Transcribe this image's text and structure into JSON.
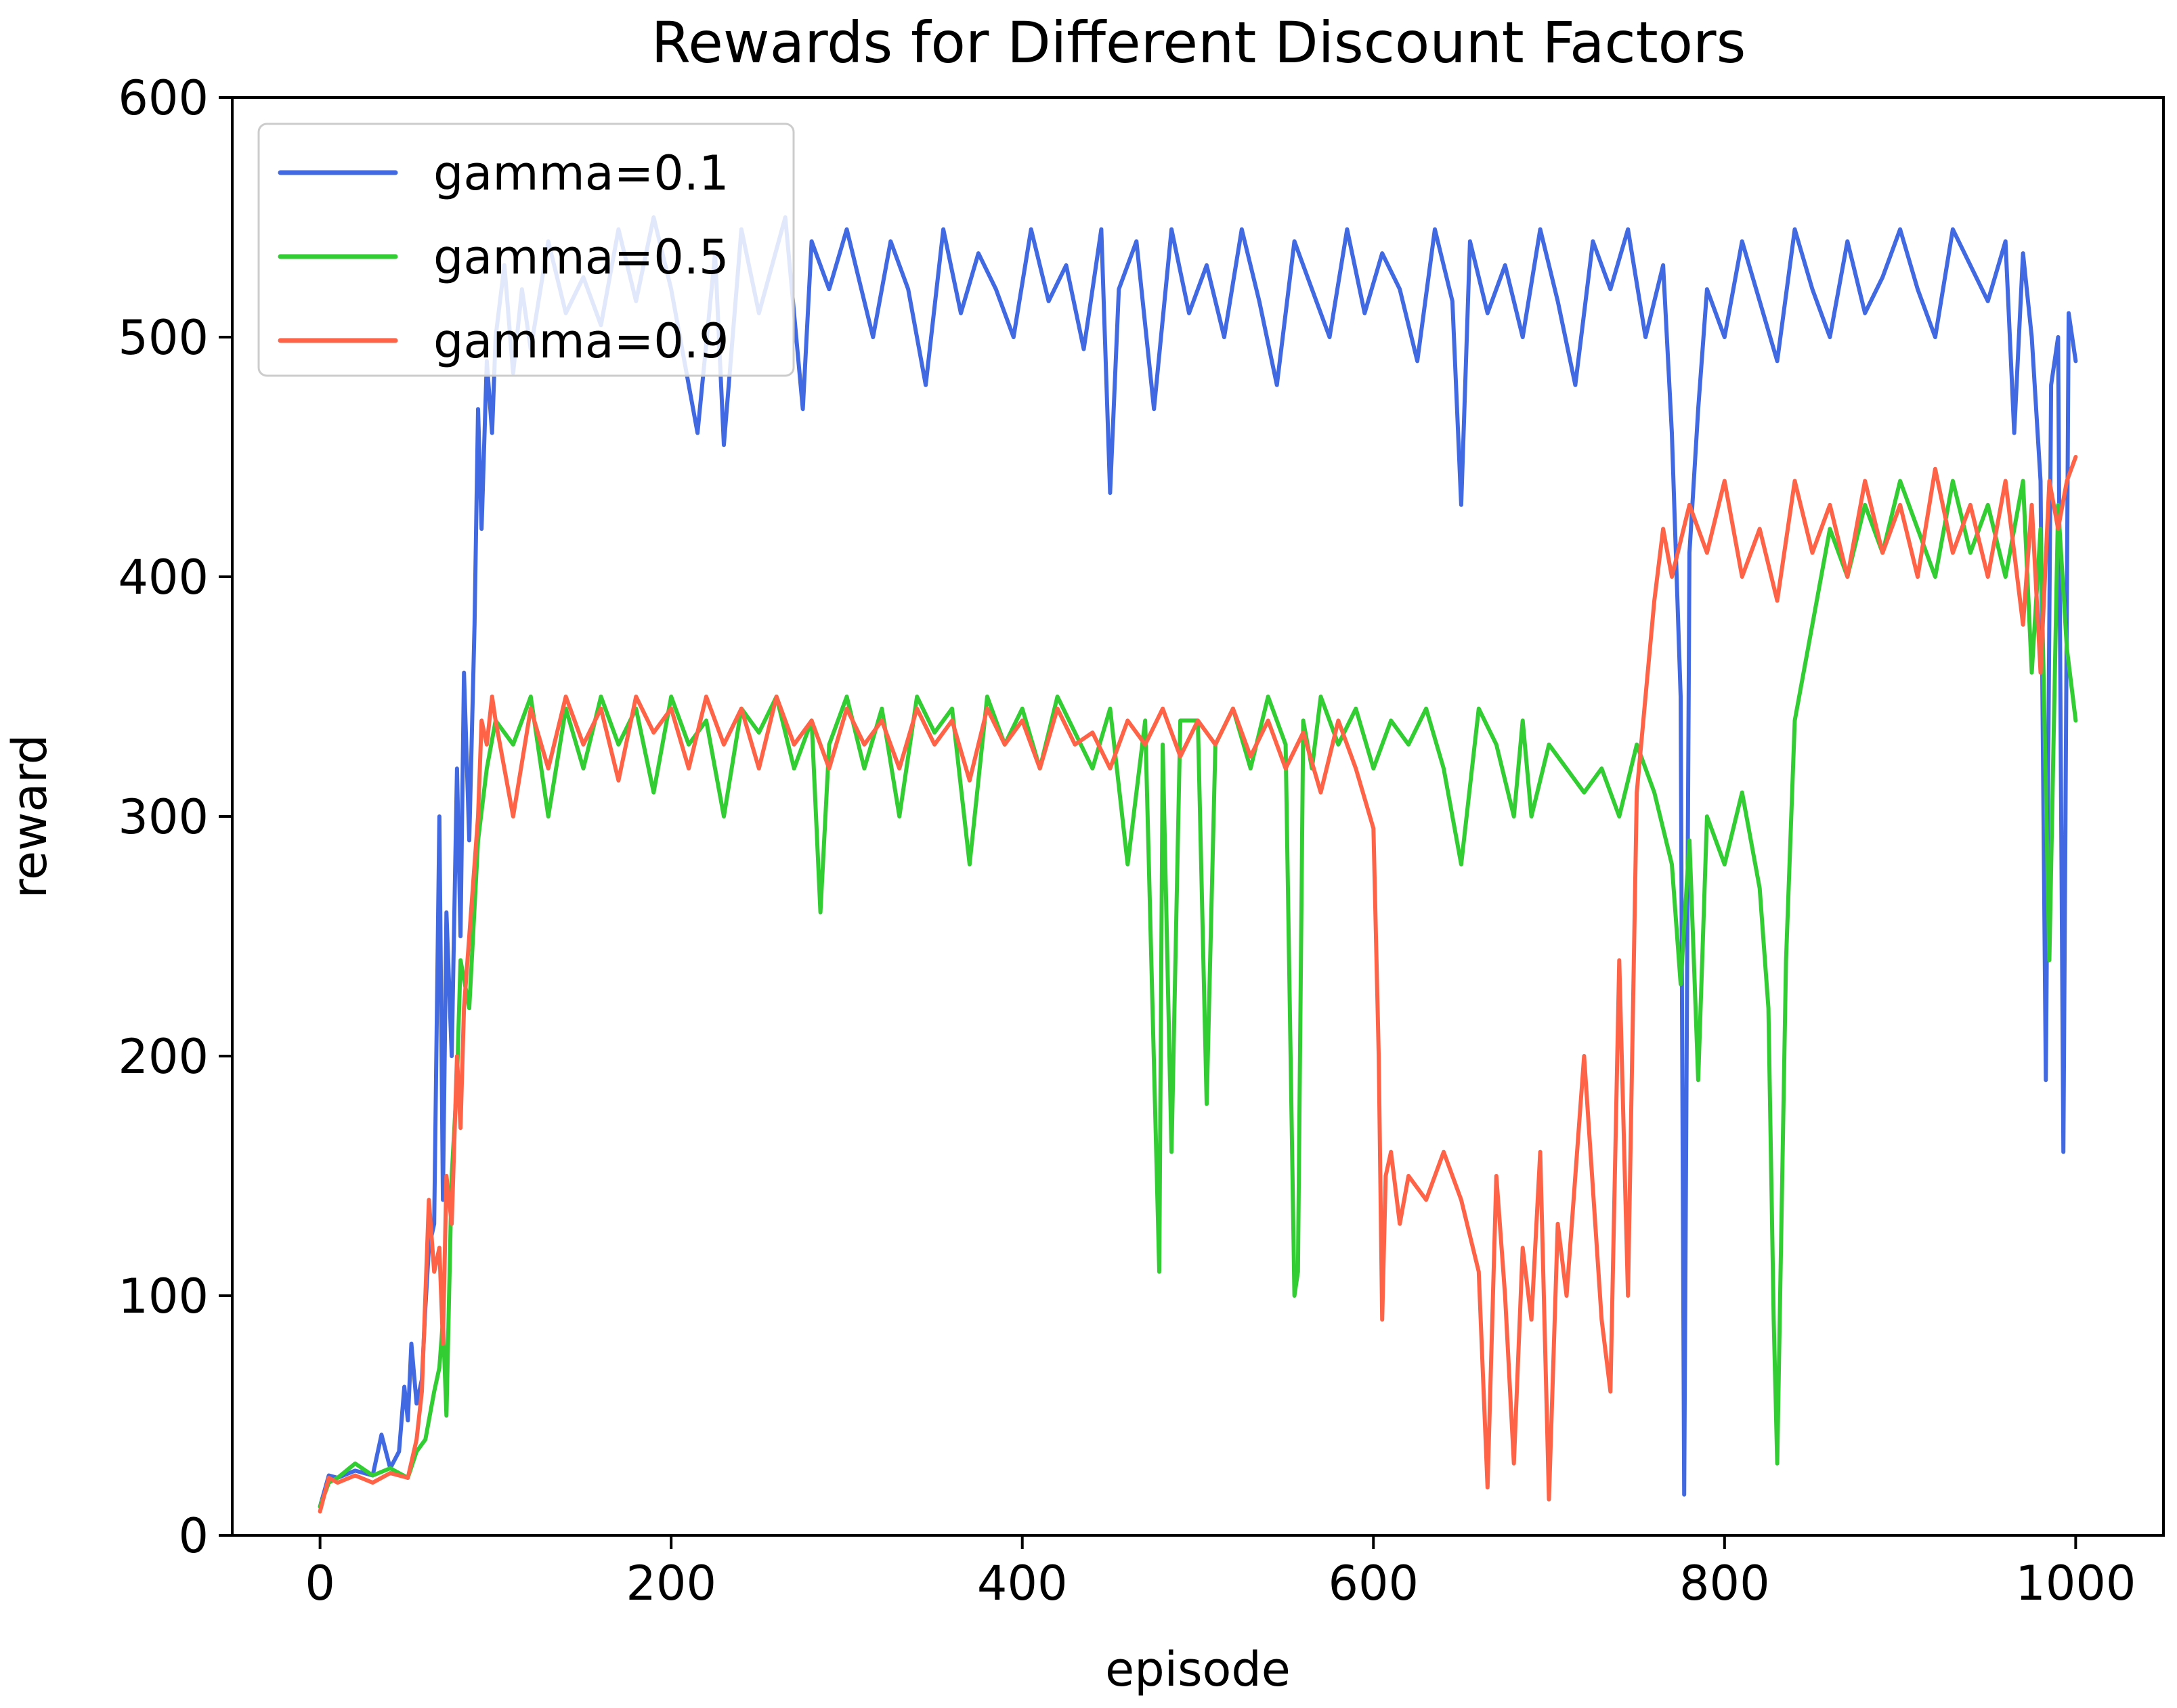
{
  "chart_data": {
    "type": "line",
    "title": "Rewards for Different Discount Factors",
    "xlabel": "episode",
    "ylabel": "reward",
    "xlim": [
      -50,
      1050
    ],
    "ylim": [
      0,
      600
    ],
    "xticks": [
      0,
      200,
      400,
      600,
      800,
      1000
    ],
    "yticks": [
      0,
      100,
      200,
      300,
      400,
      500,
      600
    ],
    "legend_position": "top-left",
    "grid": false,
    "series": [
      {
        "name": "gamma=0.1",
        "color": "#4169e1",
        "x": [
          0,
          5,
          10,
          20,
          30,
          35,
          40,
          45,
          48,
          50,
          52,
          55,
          58,
          60,
          62,
          65,
          68,
          70,
          72,
          75,
          78,
          80,
          82,
          85,
          88,
          90,
          92,
          95,
          98,
          100,
          105,
          110,
          115,
          120,
          130,
          140,
          150,
          160,
          170,
          180,
          190,
          200,
          215,
          225,
          230,
          240,
          250,
          265,
          275,
          280,
          290,
          300,
          315,
          325,
          335,
          345,
          355,
          365,
          375,
          385,
          395,
          405,
          415,
          425,
          435,
          445,
          450,
          455,
          465,
          475,
          485,
          495,
          505,
          515,
          525,
          535,
          545,
          555,
          565,
          575,
          585,
          595,
          605,
          615,
          625,
          635,
          645,
          650,
          655,
          665,
          675,
          685,
          695,
          705,
          715,
          725,
          735,
          745,
          755,
          765,
          770,
          775,
          777,
          780,
          785,
          790,
          800,
          810,
          820,
          830,
          840,
          850,
          860,
          870,
          880,
          890,
          900,
          910,
          920,
          930,
          940,
          950,
          960,
          965,
          970,
          975,
          980,
          983,
          986,
          990,
          993,
          996,
          1000
        ],
        "y": [
          12,
          25,
          24,
          27,
          25,
          42,
          28,
          35,
          62,
          48,
          80,
          55,
          65,
          95,
          120,
          130,
          300,
          140,
          260,
          200,
          320,
          250,
          360,
          290,
          380,
          470,
          420,
          490,
          460,
          500,
          530,
          485,
          520,
          495,
          540,
          510,
          525,
          505,
          545,
          515,
          550,
          520,
          460,
          535,
          455,
          545,
          510,
          550,
          470,
          540,
          520,
          545,
          500,
          540,
          520,
          480,
          545,
          510,
          535,
          520,
          500,
          545,
          515,
          530,
          495,
          545,
          435,
          520,
          540,
          470,
          545,
          510,
          530,
          500,
          545,
          515,
          480,
          540,
          520,
          500,
          545,
          510,
          535,
          520,
          490,
          545,
          515,
          430,
          540,
          510,
          530,
          500,
          545,
          515,
          480,
          540,
          520,
          545,
          500,
          530,
          460,
          350,
          17,
          410,
          470,
          520,
          500,
          540,
          515,
          490,
          545,
          520,
          500,
          540,
          510,
          525,
          545,
          520,
          500,
          545,
          530,
          515,
          540,
          460,
          535,
          500,
          440,
          190,
          480,
          500,
          160,
          510,
          490
        ]
      },
      {
        "name": "gamma=0.5",
        "color": "#32cd32",
        "x": [
          0,
          5,
          10,
          20,
          30,
          40,
          50,
          55,
          60,
          65,
          68,
          70,
          72,
          75,
          78,
          80,
          85,
          90,
          95,
          100,
          110,
          120,
          130,
          140,
          150,
          160,
          170,
          180,
          190,
          200,
          210,
          220,
          230,
          240,
          250,
          260,
          270,
          280,
          285,
          290,
          300,
          310,
          320,
          330,
          340,
          350,
          360,
          370,
          380,
          390,
          400,
          410,
          420,
          430,
          440,
          450,
          460,
          470,
          478,
          480,
          485,
          490,
          500,
          505,
          510,
          520,
          530,
          540,
          550,
          555,
          557,
          560,
          565,
          570,
          580,
          590,
          600,
          610,
          620,
          630,
          640,
          650,
          660,
          670,
          680,
          685,
          690,
          700,
          710,
          720,
          730,
          740,
          750,
          760,
          770,
          775,
          780,
          785,
          790,
          800,
          810,
          820,
          825,
          828,
          830,
          835,
          840,
          850,
          860,
          870,
          880,
          890,
          900,
          910,
          920,
          930,
          940,
          950,
          960,
          970,
          975,
          980,
          985,
          990,
          995,
          1000
        ],
        "y": [
          12,
          22,
          24,
          30,
          25,
          28,
          24,
          35,
          40,
          60,
          70,
          90,
          50,
          150,
          190,
          240,
          220,
          290,
          320,
          340,
          330,
          350,
          300,
          345,
          320,
          350,
          330,
          345,
          310,
          350,
          330,
          340,
          300,
          345,
          335,
          350,
          320,
          340,
          260,
          330,
          350,
          320,
          345,
          300,
          350,
          335,
          345,
          280,
          350,
          330,
          345,
          320,
          350,
          335,
          320,
          345,
          280,
          340,
          110,
          330,
          160,
          340,
          340,
          180,
          330,
          345,
          320,
          350,
          330,
          100,
          110,
          340,
          320,
          350,
          330,
          345,
          320,
          340,
          330,
          345,
          320,
          280,
          345,
          330,
          300,
          340,
          300,
          330,
          320,
          310,
          320,
          300,
          330,
          310,
          280,
          230,
          290,
          190,
          300,
          280,
          310,
          270,
          220,
          90,
          30,
          240,
          340,
          380,
          420,
          400,
          430,
          410,
          440,
          420,
          400,
          440,
          410,
          430,
          400,
          440,
          360,
          420,
          240,
          430,
          370,
          340
        ]
      },
      {
        "name": "gamma=0.9",
        "color": "#ff6347",
        "x": [
          0,
          5,
          10,
          20,
          30,
          40,
          50,
          55,
          58,
          60,
          62,
          65,
          68,
          70,
          72,
          75,
          78,
          80,
          82,
          85,
          88,
          90,
          92,
          95,
          98,
          100,
          110,
          120,
          130,
          140,
          150,
          160,
          170,
          180,
          190,
          200,
          210,
          220,
          230,
          240,
          250,
          260,
          270,
          280,
          290,
          300,
          310,
          320,
          330,
          340,
          350,
          360,
          370,
          380,
          390,
          400,
          410,
          420,
          430,
          440,
          450,
          460,
          470,
          480,
          490,
          500,
          510,
          520,
          530,
          540,
          550,
          560,
          570,
          580,
          590,
          600,
          603,
          605,
          607,
          610,
          615,
          620,
          630,
          640,
          650,
          660,
          665,
          670,
          675,
          680,
          685,
          690,
          695,
          700,
          705,
          710,
          720,
          730,
          735,
          740,
          745,
          750,
          755,
          760,
          765,
          770,
          780,
          790,
          800,
          810,
          820,
          830,
          840,
          850,
          860,
          870,
          880,
          890,
          900,
          910,
          920,
          930,
          940,
          950,
          960,
          970,
          975,
          980,
          985,
          990,
          995,
          1000
        ],
        "y": [
          10,
          24,
          22,
          25,
          22,
          26,
          24,
          40,
          60,
          100,
          140,
          110,
          120,
          80,
          150,
          130,
          200,
          170,
          220,
          250,
          280,
          300,
          340,
          330,
          350,
          340,
          300,
          345,
          320,
          350,
          330,
          345,
          315,
          350,
          335,
          345,
          320,
          350,
          330,
          345,
          320,
          350,
          330,
          340,
          320,
          345,
          330,
          340,
          320,
          345,
          330,
          340,
          315,
          345,
          330,
          340,
          320,
          345,
          330,
          335,
          320,
          340,
          330,
          345,
          325,
          340,
          330,
          345,
          325,
          340,
          320,
          335,
          310,
          340,
          320,
          295,
          200,
          90,
          150,
          160,
          130,
          150,
          140,
          160,
          140,
          110,
          20,
          150,
          100,
          30,
          120,
          90,
          160,
          15,
          130,
          100,
          200,
          90,
          60,
          240,
          100,
          310,
          350,
          390,
          420,
          400,
          430,
          410,
          440,
          400,
          420,
          390,
          440,
          410,
          430,
          400,
          440,
          410,
          430,
          400,
          445,
          410,
          430,
          400,
          440,
          380,
          430,
          360,
          440,
          420,
          440,
          450
        ]
      }
    ]
  }
}
